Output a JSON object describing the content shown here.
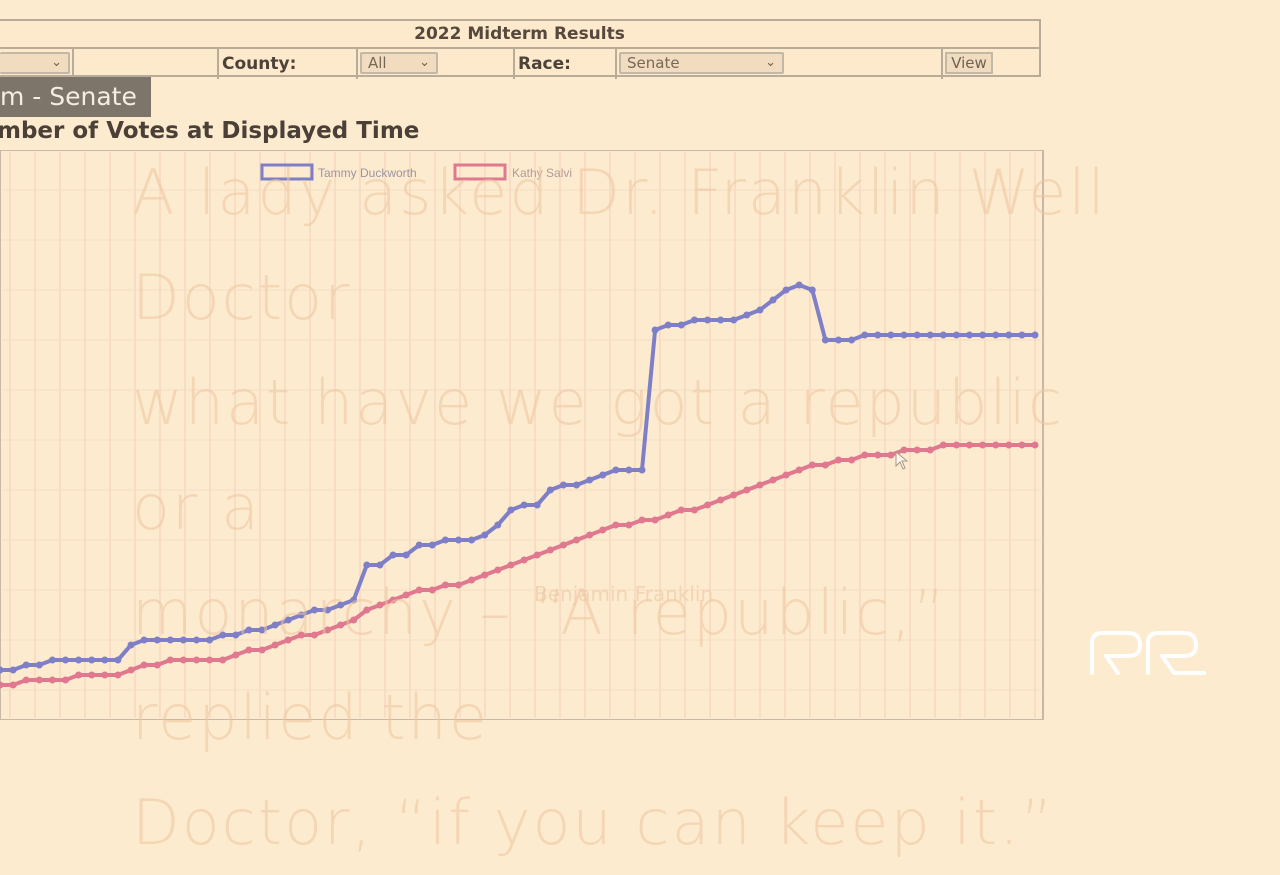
{
  "form": {
    "title": "2022 Midterm Results",
    "county_label": "County:",
    "county_value": "All",
    "race_label": "Race:",
    "race_value": "Senate",
    "view_label": "View"
  },
  "heading": {
    "badge": "m - Senate",
    "subtitle": "mber of Votes at Displayed Time"
  },
  "quote": {
    "line1": "A lady asked Dr. Franklin Well Doctor",
    "line2": "what have we got a republic or a",
    "line3": "monarchy – “A republic,” replied the",
    "line4": "Doctor, “if you can keep it.”",
    "author": "Benjamin Franklin"
  },
  "colors": {
    "background": "#fdebcf",
    "series_blue": "#7f7fc8",
    "series_red": "#e07890"
  },
  "chart_data": {
    "type": "line",
    "legend_position": "top",
    "grid": true,
    "x_count": 80,
    "ylim": [
      0,
      100
    ],
    "series": [
      {
        "name": "Tammy Duckworth",
        "color": "#7f7fc8",
        "values": [
          8,
          8,
          9,
          9,
          10,
          10,
          10,
          10,
          10,
          10,
          13,
          14,
          14,
          14,
          14,
          14,
          14,
          15,
          15,
          16,
          16,
          17,
          18,
          19,
          20,
          20,
          21,
          22,
          29,
          29,
          31,
          31,
          33,
          33,
          34,
          34,
          34,
          35,
          37,
          40,
          41,
          41,
          44,
          45,
          45,
          46,
          47,
          48,
          48,
          48,
          76,
          77,
          77,
          78,
          78,
          78,
          78,
          79,
          80,
          82,
          84,
          85,
          84,
          74,
          74,
          74,
          75,
          75,
          75,
          75,
          75,
          75,
          75,
          75,
          75,
          75,
          75,
          75,
          75,
          75
        ]
      },
      {
        "name": "Kathy Salvi",
        "color": "#e07890",
        "values": [
          5,
          5,
          6,
          6,
          6,
          6,
          7,
          7,
          7,
          7,
          8,
          9,
          9,
          10,
          10,
          10,
          10,
          10,
          11,
          12,
          12,
          13,
          14,
          15,
          15,
          16,
          17,
          18,
          20,
          21,
          22,
          23,
          24,
          24,
          25,
          25,
          26,
          27,
          28,
          29,
          30,
          31,
          32,
          33,
          34,
          35,
          36,
          37,
          37,
          38,
          38,
          39,
          40,
          40,
          41,
          42,
          43,
          44,
          45,
          46,
          47,
          48,
          49,
          49,
          50,
          50,
          51,
          51,
          51,
          52,
          52,
          52,
          53,
          53,
          53,
          53,
          53,
          53,
          53,
          53
        ]
      }
    ]
  }
}
